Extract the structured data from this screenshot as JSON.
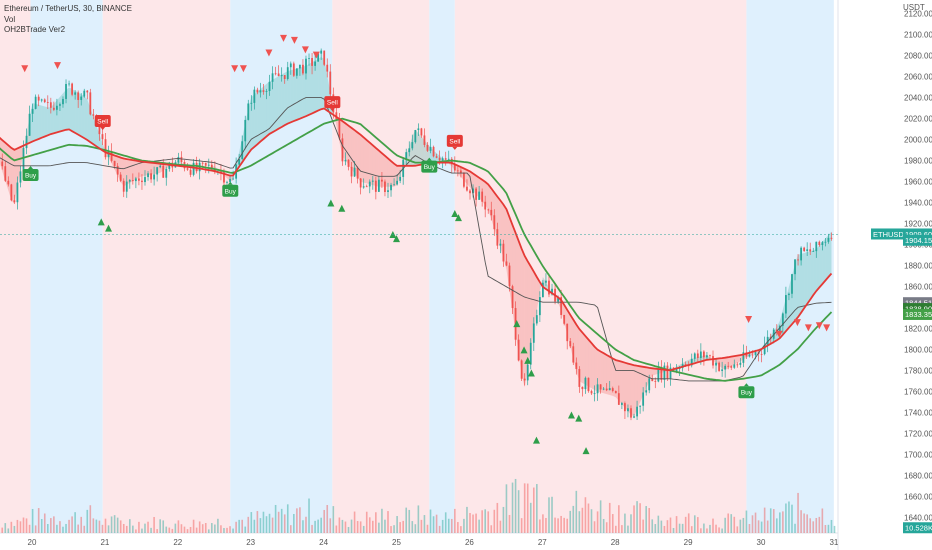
{
  "legend": {
    "symbol": "Ethereum / TetherUS, 30, BINANCE",
    "vol": "Vol",
    "indicator": "OH2BTrade Ver2"
  },
  "chart_data": {
    "type": "line",
    "symbol": "ETHUSDT",
    "currency": "USDT",
    "y_ticks": [
      1640,
      1660,
      1680,
      1700,
      1720,
      1740,
      1760,
      1780,
      1800,
      1820,
      1840,
      1860,
      1880,
      1900,
      1920,
      1940,
      1960,
      1980,
      2000,
      2020,
      2040,
      2060,
      2080,
      2100,
      2120
    ],
    "ylim": [
      1625,
      2133
    ],
    "x_ticks": [
      "20",
      "21",
      "22",
      "23",
      "24",
      "25",
      "26",
      "27",
      "28",
      "29",
      "30",
      "31"
    ],
    "x": [
      19.5,
      19.75,
      20.0,
      20.25,
      20.5,
      20.75,
      21.0,
      21.25,
      21.5,
      21.75,
      22.0,
      22.25,
      22.5,
      22.75,
      23.0,
      23.25,
      23.5,
      23.75,
      24.0,
      24.25,
      24.5,
      24.75,
      25.0,
      25.25,
      25.5,
      25.75,
      26.0,
      26.25,
      26.5,
      26.75,
      27.0,
      27.25,
      27.5,
      27.75,
      28.0,
      28.25,
      28.5,
      28.75,
      29.0,
      29.25,
      29.5,
      29.75,
      30.0,
      30.25,
      30.5,
      30.75,
      31.0
    ],
    "price": [
      1990,
      1935,
      2035,
      2030,
      2050,
      2040,
      1990,
      1955,
      1965,
      1968,
      1980,
      1970,
      1975,
      1958,
      2040,
      2055,
      2065,
      2070,
      2080,
      1985,
      1960,
      1955,
      1955,
      2010,
      1990,
      1975,
      1955,
      1935,
      1880,
      1760,
      1870,
      1840,
      1770,
      1760,
      1755,
      1735,
      1775,
      1780,
      1790,
      1795,
      1780,
      1790,
      1800,
      1825,
      1890,
      1895,
      1915
    ],
    "ma_fast": [
      2005,
      1990,
      1998,
      2005,
      2010,
      2000,
      1988,
      1982,
      1979,
      1977,
      1975,
      1973,
      1970,
      1965,
      1990,
      2005,
      2015,
      2022,
      2030,
      2018,
      2005,
      1990,
      1975,
      1975,
      1978,
      1978,
      1970,
      1958,
      1935,
      1890,
      1860,
      1848,
      1820,
      1800,
      1790,
      1785,
      1782,
      1780,
      1785,
      1790,
      1792,
      1795,
      1800,
      1810,
      1830,
      1855,
      1875
    ],
    "ma_slow": [
      1995,
      1980,
      1985,
      1990,
      1995,
      1994,
      1990,
      1985,
      1980,
      1978,
      1976,
      1975,
      1972,
      1968,
      1975,
      1985,
      1995,
      2005,
      2015,
      2020,
      2015,
      2000,
      1985,
      1978,
      1978,
      1980,
      1978,
      1970,
      1950,
      1910,
      1880,
      1855,
      1830,
      1815,
      1800,
      1790,
      1785,
      1780,
      1776,
      1772,
      1770,
      1772,
      1775,
      1785,
      1800,
      1820,
      1838
    ],
    "vol_line": [
      1985,
      1975,
      1975,
      1975,
      1978,
      1978,
      1975,
      1972,
      1978,
      1980,
      1982,
      1980,
      1978,
      1972,
      2000,
      2010,
      2030,
      2040,
      2040,
      1995,
      1970,
      1965,
      1965,
      1985,
      1975,
      1968,
      1968,
      1870,
      1860,
      1850,
      1845,
      1845,
      1845,
      1842,
      1780,
      1780,
      1772,
      1772,
      1770,
      1770,
      1770,
      1774,
      1800,
      1820,
      1840,
      1844,
      1845
    ],
    "series": [
      {
        "name": "Ethereum / TetherUS, 30, BINANCE",
        "color": "#26a69a"
      },
      {
        "name": "OH2BTrade Ver2",
        "color": "#e53935"
      }
    ],
    "volume": [
      0.22,
      0.18,
      0.28,
      0.3,
      0.25,
      0.35,
      0.2,
      0.22,
      0.18,
      0.2,
      0.16,
      0.18,
      0.2,
      0.22,
      0.25,
      0.3,
      0.35,
      0.4,
      0.38,
      0.28,
      0.25,
      0.3,
      0.28,
      0.32,
      0.3,
      0.28,
      0.35,
      0.4,
      0.55,
      0.8,
      0.7,
      0.6,
      0.5,
      0.45,
      0.4,
      0.38,
      0.3,
      0.28,
      0.25,
      0.24,
      0.22,
      0.25,
      0.28,
      0.35,
      0.45,
      0.4,
      0.3
    ],
    "vol_ylim": [
      0,
      1
    ],
    "backgrounds": [
      {
        "from": 19.5,
        "to": 19.98,
        "state": "sell"
      },
      {
        "from": 19.98,
        "to": 20.97,
        "state": "buy"
      },
      {
        "from": 20.97,
        "to": 22.72,
        "state": "sell"
      },
      {
        "from": 22.72,
        "to": 24.12,
        "state": "buy"
      },
      {
        "from": 24.12,
        "to": 25.45,
        "state": "sell"
      },
      {
        "from": 25.45,
        "to": 25.8,
        "state": "buy"
      },
      {
        "from": 25.8,
        "to": 29.8,
        "state": "sell"
      },
      {
        "from": 29.8,
        "to": 31.0,
        "state": "buy"
      },
      {
        "from": 31.0,
        "to": 31.45,
        "state": "none"
      }
    ],
    "signals": [
      {
        "label": "Buy",
        "x": 19.98,
        "y": 1970,
        "type": "buy"
      },
      {
        "label": "Sell",
        "x": 20.97,
        "y": 2012,
        "type": "sell"
      },
      {
        "label": "Buy",
        "x": 22.72,
        "y": 1955,
        "type": "buy"
      },
      {
        "label": "Sell",
        "x": 24.12,
        "y": 2030,
        "type": "sell"
      },
      {
        "label": "Buy",
        "x": 25.45,
        "y": 1978,
        "type": "buy"
      },
      {
        "label": "Sell",
        "x": 25.8,
        "y": 1993,
        "type": "sell"
      },
      {
        "label": "Buy",
        "x": 29.8,
        "y": 1763,
        "type": "buy"
      }
    ],
    "arrows_down": [
      [
        19.9,
        2067
      ],
      [
        20.35,
        2070
      ],
      [
        22.78,
        2067
      ],
      [
        22.9,
        2067
      ],
      [
        23.25,
        2082
      ],
      [
        23.45,
        2096
      ],
      [
        23.6,
        2094
      ],
      [
        23.75,
        2085
      ],
      [
        23.9,
        2080
      ],
      [
        29.83,
        1828
      ],
      [
        30.25,
        1814
      ],
      [
        30.5,
        1825
      ],
      [
        30.65,
        1820
      ],
      [
        30.8,
        1822
      ],
      [
        30.9,
        1820
      ]
    ],
    "arrows_up": [
      [
        20.95,
        1922
      ],
      [
        21.05,
        1916
      ],
      [
        24.1,
        1940
      ],
      [
        24.25,
        1935
      ],
      [
        24.95,
        1910
      ],
      [
        25.0,
        1906
      ],
      [
        25.8,
        1930
      ],
      [
        25.85,
        1926
      ],
      [
        26.65,
        1825
      ],
      [
        26.75,
        1800
      ],
      [
        26.8,
        1790
      ],
      [
        26.85,
        1778
      ],
      [
        26.92,
        1714
      ],
      [
        27.4,
        1738
      ],
      [
        27.5,
        1735
      ],
      [
        27.6,
        1704
      ]
    ],
    "price_tags": [
      {
        "label": "ETHUSDT",
        "value": "1909.60",
        "y": 1910,
        "color": "#26a69a",
        "kind": "name"
      },
      {
        "label": "",
        "value": "1904.15",
        "y": 1904,
        "color": "#26a69a",
        "kind": "value"
      },
      {
        "label": "",
        "value": "1844.51",
        "y": 1844.5,
        "color": "#787b86",
        "kind": "value"
      },
      {
        "label": "",
        "value": "1838.90",
        "y": 1838.9,
        "color": "#2e7d32",
        "kind": "value"
      },
      {
        "label": "",
        "value": "1833.35",
        "y": 1833.3,
        "color": "#43a047",
        "kind": "value"
      },
      {
        "label": "",
        "value": "10.528K",
        "y": 1630,
        "color": "#26a69a",
        "kind": "value"
      }
    ],
    "colors": {
      "buy_bg": "#dff0fd",
      "sell_bg": "#fde7e9",
      "up": "#26a69a",
      "down": "#ef5350",
      "ma_fast": "#e53935",
      "ma_slow": "#43a047",
      "vol_line": "#555555"
    }
  }
}
